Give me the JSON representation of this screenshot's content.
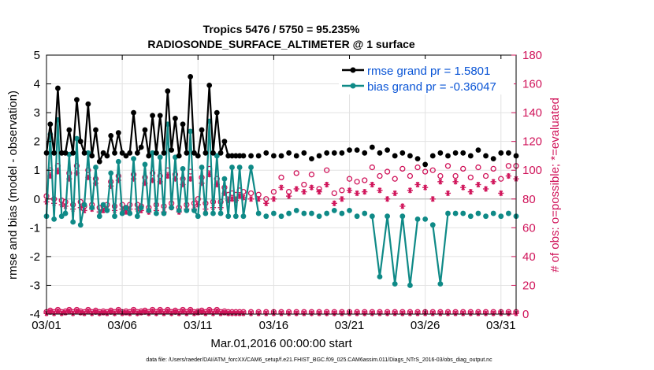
{
  "chart_data": {
    "type": "line",
    "title_line1": "Tropics 5476 / 5750 = 95.235%",
    "title_line2": "RADIOSONDE_SURFACE_ALTIMETER @ 1 surface",
    "xlabel": "Mar.01,2016 00:00:00 start",
    "ylabel_left": "rmse and bias (model - observation)",
    "ylabel_right": "# of obs: o=possible; *=evaluated",
    "xlim": [
      0,
      31
    ],
    "ylim_left": [
      -4,
      5
    ],
    "ylim_right": [
      0,
      180
    ],
    "x_ticks": [
      0,
      5,
      10,
      15,
      20,
      25,
      30
    ],
    "x_tick_labels": [
      "03/01",
      "03/06",
      "03/11",
      "03/16",
      "03/21",
      "03/26",
      "03/31"
    ],
    "y_ticks_left": [
      "-4",
      "-3",
      "-2",
      "-1",
      "0",
      "1",
      "2",
      "3",
      "4",
      "5"
    ],
    "y_ticks_right": [
      "0",
      "20",
      "40",
      "60",
      "80",
      "100",
      "120",
      "140",
      "160",
      "180"
    ],
    "colors": {
      "rmse": "#000000",
      "bias": "#0f8a87",
      "obs": "#d0145a",
      "grid": "#e2e2e2",
      "legend_text": "#0a55d6"
    },
    "legend": [
      "rmse grand pr = 1.5801",
      "bias grand pr = -0.36047"
    ],
    "footer": "data file: /Users/raeder/DAI/ATM_forcXX/CAM6_setup/f.e21.FHIST_BGC.f09_025.CAM6assim.011/Diags_NTrS_2016-03/obs_diag_output.nc",
    "series": [
      {
        "name": "rmse",
        "axis": "left",
        "x": [
          0,
          0.25,
          0.5,
          0.75,
          1,
          1.25,
          1.5,
          1.75,
          2,
          2.25,
          2.5,
          2.75,
          3,
          3.25,
          3.5,
          3.75,
          4,
          4.25,
          4.5,
          4.75,
          5,
          5.25,
          5.5,
          5.75,
          6,
          6.25,
          6.5,
          6.75,
          7,
          7.25,
          7.5,
          7.75,
          8,
          8.25,
          8.5,
          8.75,
          9,
          9.25,
          9.5,
          9.75,
          10,
          10.25,
          10.5,
          10.75,
          11,
          11.25,
          11.5,
          11.75,
          12,
          12.25,
          12.5,
          12.75,
          13,
          13.5,
          14,
          14.5,
          15,
          15.5,
          16,
          16.5,
          17,
          17.5,
          18,
          18.5,
          19,
          19.5,
          20,
          20.5,
          21,
          21.5,
          22,
          22.5,
          23,
          23.5,
          24,
          24.5,
          25,
          25.5,
          26,
          26.5,
          27,
          27.5,
          28,
          28.5,
          29,
          29.5,
          30,
          30.5,
          31
        ],
        "values": [
          1.6,
          2.6,
          1.6,
          3.85,
          1.6,
          1.6,
          2.4,
          1.6,
          3.45,
          2.0,
          1.6,
          3.3,
          1.5,
          2.4,
          1.3,
          1.6,
          1.5,
          2.2,
          1.6,
          2.3,
          1.6,
          1.5,
          1.6,
          3.0,
          1.6,
          1.8,
          2.4,
          1.5,
          2.9,
          1.6,
          2.9,
          1.6,
          3.75,
          1.7,
          2.8,
          1.5,
          2.6,
          1.6,
          4.25,
          1.6,
          1.5,
          2.4,
          1.6,
          3.95,
          1.6,
          3.0,
          1.6,
          2.0,
          1.5,
          1.5,
          1.5,
          1.5,
          1.5,
          1.5,
          1.5,
          1.6,
          1.5,
          1.5,
          1.6,
          1.5,
          1.6,
          1.4,
          1.5,
          1.6,
          1.6,
          1.6,
          1.7,
          1.7,
          1.6,
          1.8,
          1.6,
          1.7,
          1.5,
          1.6,
          1.5,
          1.4,
          1.2,
          1.5,
          1.6,
          1.5,
          1.6,
          1.6,
          1.5,
          1.7,
          1.5,
          1.4,
          1.6,
          1.6,
          1.5
        ]
      },
      {
        "name": "bias",
        "axis": "left",
        "x": [
          0,
          0.25,
          0.5,
          0.75,
          1,
          1.25,
          1.5,
          1.75,
          2,
          2.25,
          2.5,
          2.75,
          3,
          3.25,
          3.5,
          3.75,
          4,
          4.25,
          4.5,
          4.75,
          5,
          5.25,
          5.5,
          5.75,
          6,
          6.25,
          6.5,
          6.75,
          7,
          7.25,
          7.5,
          7.75,
          8,
          8.25,
          8.5,
          8.75,
          9,
          9.25,
          9.5,
          9.75,
          10,
          10.25,
          10.5,
          10.75,
          11,
          11.25,
          11.5,
          11.75,
          12,
          12.25,
          12.5,
          12.75,
          13,
          13.5,
          14,
          14.5,
          15,
          15.5,
          16,
          16.5,
          17,
          17.5,
          18,
          18.5,
          19,
          19.5,
          20,
          20.5,
          21,
          21.5,
          22,
          22.5,
          23,
          23.5,
          24,
          24.5,
          25,
          25.5,
          26,
          26.5,
          27,
          27.5,
          28,
          28.5,
          29,
          29.5,
          30,
          30.5,
          31
        ],
        "values": [
          -0.6,
          2.25,
          -0.7,
          2.75,
          -0.6,
          -0.5,
          1.55,
          -0.8,
          2.1,
          -0.9,
          -0.2,
          1.6,
          -0.3,
          1.1,
          -0.6,
          -0.2,
          -0.4,
          0.9,
          -0.6,
          1.3,
          -0.5,
          -0.3,
          -0.5,
          1.4,
          -0.6,
          -0.3,
          1.2,
          -0.4,
          1.6,
          -0.5,
          1.45,
          -0.5,
          2.6,
          -0.3,
          1.45,
          -0.4,
          1.05,
          -0.4,
          2.35,
          -0.4,
          -0.6,
          1.1,
          -0.5,
          2.7,
          -0.5,
          1.5,
          -0.5,
          0.7,
          -0.6,
          1.1,
          -0.6,
          1.1,
          -0.6,
          1.1,
          -0.5,
          -0.6,
          -0.5,
          -0.6,
          -0.5,
          -0.4,
          -0.5,
          -0.5,
          -0.6,
          -0.5,
          -0.4,
          -0.5,
          -0.4,
          -0.6,
          -0.5,
          -0.6,
          -2.7,
          -0.6,
          -2.95,
          -0.6,
          -3.0,
          -0.7,
          -0.7,
          -0.9,
          -2.95,
          -0.5,
          -0.5,
          -0.5,
          -0.6,
          -0.5,
          -0.6,
          -0.5,
          -0.6,
          -0.5,
          -0.6
        ]
      },
      {
        "name": "obs_possible",
        "axis": "right",
        "x": [
          0,
          0.25,
          0.5,
          0.75,
          1,
          1.25,
          1.5,
          1.75,
          2,
          2.25,
          2.5,
          2.75,
          3,
          3.25,
          3.5,
          3.75,
          4,
          4.25,
          4.5,
          4.75,
          5,
          5.25,
          5.5,
          5.75,
          6,
          6.25,
          6.5,
          6.75,
          7,
          7.25,
          7.5,
          7.75,
          8,
          8.25,
          8.5,
          8.75,
          9,
          9.25,
          9.5,
          9.75,
          10,
          10.25,
          10.5,
          10.75,
          11,
          11.25,
          11.5,
          11.75,
          12,
          12.25,
          12.5,
          12.75,
          13,
          13.5,
          14,
          14.5,
          15,
          15.5,
          16,
          16.5,
          17,
          17.5,
          18,
          18.5,
          19,
          19.5,
          20,
          20.5,
          21,
          21.5,
          22,
          22.5,
          23,
          23.5,
          24,
          24.5,
          25,
          25.5,
          26,
          26.5,
          27,
          27.5,
          28,
          28.5,
          29,
          29.5,
          30,
          30.5,
          31
        ],
        "values": [
          82,
          100,
          80,
          103,
          79,
          78,
          98,
          76,
          103,
          78,
          75,
          100,
          76,
          94,
          74,
          75,
          76,
          92,
          75,
          96,
          76,
          74,
          76,
          97,
          76,
          75,
          95,
          74,
          98,
          76,
          96,
          75,
          100,
          77,
          97,
          74,
          94,
          76,
          99,
          77,
          80,
          95,
          77,
          101,
          78,
          94,
          78,
          88,
          83,
          84,
          83,
          86,
          85,
          84,
          83,
          80,
          85,
          95,
          85,
          98,
          90,
          97,
          87,
          100,
          84,
          86,
          94,
          92,
          93,
          102,
          96,
          99,
          94,
          101,
          96,
          102,
          99,
          100,
          96,
          103,
          96,
          101,
          95,
          102,
          96,
          101,
          94,
          103,
          103
        ]
      },
      {
        "name": "obs_evaluated",
        "axis": "right",
        "x": [
          0,
          0.25,
          0.5,
          0.75,
          1,
          1.25,
          1.5,
          1.75,
          2,
          2.25,
          2.5,
          2.75,
          3,
          3.25,
          3.5,
          3.75,
          4,
          4.25,
          4.5,
          4.75,
          5,
          5.25,
          5.5,
          5.75,
          6,
          6.25,
          6.5,
          6.75,
          7,
          7.25,
          7.5,
          7.75,
          8,
          8.25,
          8.5,
          8.75,
          9,
          9.25,
          9.5,
          9.75,
          10,
          10.25,
          10.5,
          10.75,
          11,
          11.25,
          11.5,
          11.75,
          12,
          12.25,
          12.5,
          12.75,
          13,
          13.5,
          14,
          14.5,
          15,
          15.5,
          16,
          16.5,
          17,
          17.5,
          18,
          18.5,
          19,
          19.5,
          20,
          20.5,
          21,
          21.5,
          22,
          22.5,
          23,
          23.5,
          24,
          24.5,
          25,
          25.5,
          26,
          26.5,
          27,
          27.5,
          28,
          28.5,
          29,
          29.5,
          30,
          30.5,
          31
        ],
        "values": [
          78,
          96,
          77,
          99,
          76,
          75,
          94,
          73,
          98,
          74,
          72,
          95,
          73,
          91,
          71,
          72,
          73,
          89,
          72,
          93,
          73,
          71,
          73,
          94,
          73,
          72,
          91,
          71,
          93,
          72,
          92,
          71,
          96,
          74,
          94,
          71,
          90,
          73,
          94,
          73,
          76,
          91,
          73,
          97,
          74,
          90,
          74,
          84,
          79,
          80,
          79,
          82,
          81,
          80,
          80,
          77,
          80,
          88,
          82,
          87,
          85,
          88,
          85,
          90,
          77,
          80,
          86,
          84,
          85,
          90,
          86,
          80,
          84,
          75,
          86,
          90,
          88,
          80,
          92,
          84,
          92,
          88,
          85,
          90,
          87,
          92,
          84,
          96,
          94
        ]
      },
      {
        "name": "obs_bottom_possible",
        "axis": "right",
        "x": [
          0,
          0.25,
          0.5,
          0.75,
          1,
          1.25,
          1.5,
          1.75,
          2,
          2.25,
          2.5,
          2.75,
          3,
          3.25,
          3.5,
          3.75,
          4,
          4.25,
          4.5,
          4.75,
          5,
          5.25,
          5.5,
          5.75,
          6,
          6.25,
          6.5,
          6.75,
          7,
          7.25,
          7.5,
          7.75,
          8,
          8.25,
          8.5,
          8.75,
          9,
          9.25,
          9.5,
          9.75,
          10,
          10.25,
          10.5,
          10.75,
          11,
          11.25,
          11.5,
          11.75,
          12,
          12.25,
          12.5,
          12.75,
          13,
          13.5,
          14,
          14.5,
          15,
          15.5,
          16,
          16.5,
          17,
          17.5,
          18,
          18.5,
          19,
          19.5,
          20,
          20.5,
          21,
          21.5,
          22,
          22.5,
          23,
          23.5,
          24,
          24.5,
          25,
          25.5,
          26,
          26.5,
          27,
          27.5,
          28,
          28.5,
          29,
          29.5,
          30,
          30.5,
          31
        ],
        "values": [
          1.5,
          2.5,
          1.5,
          3,
          1.5,
          2,
          3,
          1.5,
          3,
          2,
          1.5,
          3,
          1.5,
          2.5,
          1.5,
          2,
          1.5,
          2.5,
          1.5,
          3,
          1.5,
          2,
          1.5,
          3,
          1.5,
          2,
          2.5,
          1.5,
          3,
          1.5,
          3,
          1.5,
          3,
          1.5,
          2.5,
          1.5,
          3,
          1.5,
          3,
          1.5,
          2,
          2.5,
          1.5,
          3,
          1.5,
          3,
          1.5,
          2,
          1.5,
          1.5,
          1.5,
          1.5,
          1.5,
          1.5,
          1.5,
          1.5,
          1.5,
          1.5,
          1.5,
          1.5,
          1.5,
          1.5,
          1.5,
          1.5,
          1.5,
          1.5,
          1.5,
          1.5,
          1.5,
          1.5,
          1.5,
          1.5,
          1.5,
          1.5,
          1.5,
          1.5,
          1.5,
          1.5,
          1.5,
          1.5,
          1.5,
          1.5,
          1.5,
          1.5,
          1.5,
          1.5,
          1.5,
          1.5,
          1.5
        ]
      }
    ]
  }
}
